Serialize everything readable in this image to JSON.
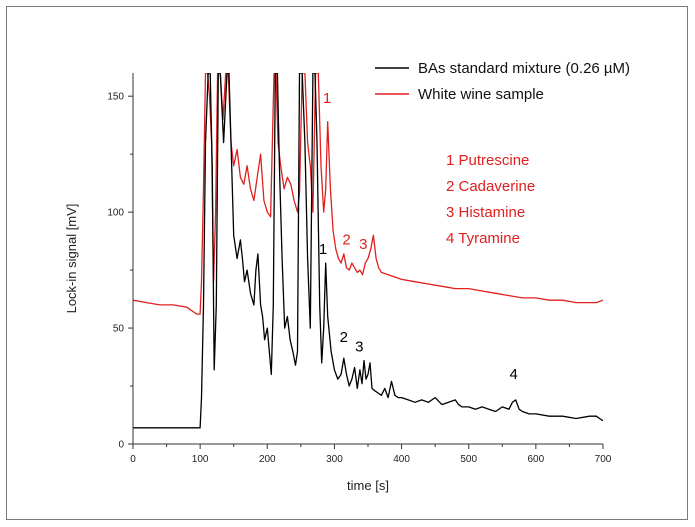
{
  "chart_data": {
    "type": "line",
    "xlabel": "time [s]",
    "ylabel": "Lock-in signal [mV]",
    "xlim": [
      0,
      700
    ],
    "ylim": [
      0,
      160
    ],
    "xticks": [
      0,
      100,
      200,
      300,
      400,
      500,
      600,
      700
    ],
    "yticks": [
      0,
      50,
      100,
      150
    ],
    "grid": false,
    "legend_position": "top-right",
    "series": [
      {
        "name": "BAs standard mixture (0.26 µM)",
        "color": "#000000",
        "x": [
          0,
          20,
          50,
          80,
          95,
          100,
          102,
          105,
          108,
          112,
          115,
          118,
          121,
          124,
          127,
          130,
          135,
          140,
          143,
          146,
          150,
          155,
          160,
          163,
          166,
          170,
          175,
          180,
          183,
          186,
          190,
          193,
          196,
          200,
          203,
          206,
          209,
          212,
          215,
          218,
          222,
          226,
          230,
          234,
          238,
          242,
          245,
          248,
          252,
          256,
          260,
          264,
          268,
          271,
          274,
          278,
          281,
          284,
          287,
          290,
          295,
          300,
          305,
          310,
          314,
          318,
          322,
          326,
          330,
          334,
          338,
          341,
          344,
          347,
          350,
          353,
          356,
          360,
          365,
          370,
          375,
          380,
          385,
          390,
          395,
          400,
          410,
          420,
          430,
          440,
          450,
          460,
          470,
          480,
          485,
          490,
          500,
          510,
          520,
          530,
          540,
          550,
          560,
          565,
          570,
          575,
          580,
          590,
          600,
          620,
          640,
          660,
          680,
          690,
          695,
          700
        ],
        "y": [
          7,
          7,
          7,
          7,
          7,
          7,
          20,
          60,
          130,
          160,
          160,
          120,
          32,
          60,
          160,
          160,
          130,
          160,
          160,
          130,
          90,
          80,
          88,
          80,
          70,
          75,
          65,
          60,
          75,
          82,
          60,
          55,
          45,
          50,
          40,
          30,
          60,
          160,
          160,
          120,
          80,
          50,
          55,
          45,
          40,
          34,
          40,
          160,
          160,
          130,
          80,
          50,
          160,
          160,
          130,
          60,
          35,
          50,
          78,
          55,
          40,
          32,
          28,
          30,
          37,
          30,
          25,
          28,
          33,
          24,
          32,
          26,
          36,
          28,
          30,
          35,
          24,
          23,
          22,
          21,
          24,
          20,
          27,
          21,
          20,
          20,
          19,
          18,
          19,
          18,
          20,
          17,
          18,
          19,
          17,
          16,
          16,
          15,
          16,
          15,
          14,
          16,
          15,
          18,
          19,
          15,
          14,
          13,
          13,
          12,
          12,
          11,
          12,
          12,
          11,
          10
        ]
      },
      {
        "name": "White wine sample",
        "color": "#e02020",
        "x": [
          0,
          20,
          40,
          60,
          80,
          95,
          100,
          102,
          105,
          108,
          111,
          114,
          117,
          120,
          123,
          126,
          130,
          134,
          138,
          142,
          146,
          150,
          155,
          160,
          165,
          170,
          175,
          180,
          185,
          190,
          195,
          200,
          205,
          210,
          213,
          216,
          220,
          225,
          230,
          235,
          240,
          245,
          248,
          252,
          256,
          260,
          264,
          268,
          272,
          276,
          280,
          284,
          287,
          290,
          294,
          298,
          302,
          306,
          310,
          314,
          318,
          322,
          326,
          330,
          334,
          338,
          342,
          346,
          350,
          354,
          358,
          362,
          366,
          370,
          380,
          390,
          400,
          420,
          440,
          460,
          480,
          500,
          520,
          540,
          560,
          580,
          600,
          620,
          640,
          660,
          680,
          690,
          700
        ],
        "y": [
          62,
          61,
          60,
          60,
          59,
          56,
          56,
          70,
          110,
          160,
          160,
          150,
          130,
          70,
          100,
          160,
          160,
          140,
          160,
          160,
          130,
          120,
          127,
          115,
          112,
          120,
          110,
          105,
          115,
          125,
          105,
          100,
          98,
          160,
          160,
          130,
          120,
          110,
          115,
          112,
          105,
          100,
          108,
          160,
          160,
          130,
          120,
          100,
          160,
          160,
          120,
          100,
          110,
          139,
          110,
          92,
          84,
          80,
          78,
          82,
          76,
          75,
          78,
          76,
          74,
          75,
          73,
          78,
          80,
          84,
          90,
          80,
          76,
          74,
          73,
          72,
          71,
          70,
          69,
          68,
          67,
          67,
          66,
          65,
          64,
          63,
          63,
          62,
          62,
          61,
          61,
          61,
          62
        ]
      }
    ],
    "annotations": [
      {
        "text": "1",
        "x": 289,
        "y": 147,
        "color": "#e02020"
      },
      {
        "text": "2",
        "x": 318,
        "y": 86,
        "color": "#e02020"
      },
      {
        "text": "3",
        "x": 343,
        "y": 84,
        "color": "#e02020"
      },
      {
        "text": "1",
        "x": 283,
        "y": 82,
        "color": "#000000"
      },
      {
        "text": "2",
        "x": 314,
        "y": 44,
        "color": "#000000"
      },
      {
        "text": "3",
        "x": 337,
        "y": 40,
        "color": "#000000"
      },
      {
        "text": "4",
        "x": 567,
        "y": 28,
        "color": "#000000"
      }
    ],
    "compound_key": [
      "1 Putrescine",
      "2 Cadaverine",
      "3 Histamine",
      "4 Tyramine"
    ],
    "compound_key_color": "#e02020"
  }
}
